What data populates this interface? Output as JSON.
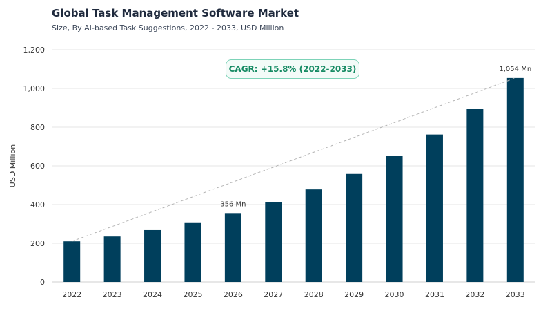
{
  "chart_data": {
    "type": "bar",
    "title": "Global Task Management Software Market",
    "subtitle": "Size, By AI-based Task Suggestions, 2022 - 2033, USD Million",
    "ylabel": "USD Million",
    "xlabel": "",
    "ylim": [
      0,
      1200
    ],
    "yticks": [
      0,
      200,
      400,
      600,
      800,
      1000,
      1200
    ],
    "ytick_labels": [
      "0",
      "200",
      "400",
      "600",
      "800",
      "1,000",
      "1,200"
    ],
    "grid": true,
    "bar_color": "#003f5c",
    "categories": [
      "2022",
      "2023",
      "2024",
      "2025",
      "2026",
      "2027",
      "2028",
      "2029",
      "2030",
      "2031",
      "2032",
      "2033"
    ],
    "values": [
      210,
      235,
      268,
      308,
      356,
      412,
      478,
      558,
      650,
      762,
      895,
      1054
    ],
    "data_labels": [
      {
        "category": "2026",
        "text": "356 Mn"
      },
      {
        "category": "2033",
        "text": "1,054 Mn"
      }
    ],
    "annotation": "CAGR: +15.8% (2022-2033)",
    "trend_line": {
      "from": "2022",
      "to": "2033",
      "style": "dashed"
    }
  }
}
